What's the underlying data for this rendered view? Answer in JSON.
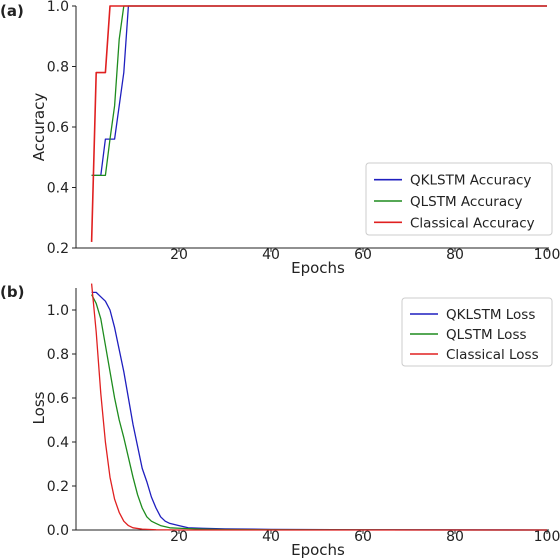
{
  "panels": [
    {
      "panel_label": "(a)"
    },
    {
      "panel_label": "(b)"
    }
  ],
  "chart_data": [
    {
      "type": "line",
      "xlabel": "Epochs",
      "ylabel": "Accuracy",
      "xlim": [
        0,
        100
      ],
      "ylim": [
        0.2,
        1.0
      ],
      "xticks": [
        20,
        40,
        60,
        80,
        100
      ],
      "yticks": [
        0.2,
        0.4,
        0.6,
        0.8,
        1.0
      ],
      "grid": false,
      "legend_position": "lower-right",
      "series": [
        {
          "name": "QKLSTM Accuracy",
          "color": "#1f1fbf",
          "x": [
            1,
            2,
            3,
            4,
            5,
            6,
            7,
            8,
            9,
            10,
            100
          ],
          "y": [
            0.44,
            0.44,
            0.44,
            0.56,
            0.56,
            0.56,
            0.67,
            0.78,
            1.0,
            1.0,
            1.0
          ]
        },
        {
          "name": "QLSTM Accuracy",
          "color": "#1e8c1e",
          "x": [
            1,
            2,
            3,
            4,
            5,
            6,
            7,
            8,
            9,
            100
          ],
          "y": [
            0.44,
            0.44,
            0.44,
            0.44,
            0.56,
            0.67,
            0.89,
            1.0,
            1.0,
            1.0
          ]
        },
        {
          "name": "Classical Accuracy",
          "color": "#e02020",
          "x": [
            1,
            2,
            3,
            4,
            5,
            6,
            100
          ],
          "y": [
            0.22,
            0.78,
            0.78,
            0.78,
            1.0,
            1.0,
            1.0
          ]
        }
      ]
    },
    {
      "type": "line",
      "xlabel": "Epochs",
      "ylabel": "Loss",
      "xlim": [
        0,
        100
      ],
      "ylim": [
        0.0,
        1.1
      ],
      "xticks": [
        20,
        40,
        60,
        80,
        100
      ],
      "yticks": [
        0.0,
        0.2,
        0.4,
        0.6,
        0.8,
        1.0
      ],
      "grid": false,
      "legend_position": "upper-right",
      "series": [
        {
          "name": "QKLSTM Loss",
          "color": "#1f1fbf",
          "x": [
            1,
            2,
            3,
            4,
            5,
            6,
            7,
            8,
            9,
            10,
            11,
            12,
            13,
            14,
            15,
            16,
            17,
            18,
            20,
            22,
            25,
            30,
            40,
            60,
            100
          ],
          "y": [
            1.08,
            1.08,
            1.06,
            1.04,
            1.0,
            0.92,
            0.82,
            0.72,
            0.6,
            0.48,
            0.38,
            0.28,
            0.22,
            0.15,
            0.1,
            0.06,
            0.04,
            0.03,
            0.02,
            0.01,
            0.008,
            0.005,
            0.003,
            0.001,
            0.0
          ]
        },
        {
          "name": "QLSTM Loss",
          "color": "#1e8c1e",
          "x": [
            1,
            2,
            3,
            4,
            5,
            6,
            7,
            8,
            9,
            10,
            11,
            12,
            13,
            14,
            15,
            16,
            18,
            20,
            25,
            30,
            40,
            100
          ],
          "y": [
            1.07,
            1.03,
            0.96,
            0.84,
            0.72,
            0.6,
            0.5,
            0.42,
            0.33,
            0.24,
            0.16,
            0.1,
            0.06,
            0.04,
            0.03,
            0.02,
            0.01,
            0.008,
            0.004,
            0.002,
            0.001,
            0.0
          ]
        },
        {
          "name": "Classical Loss",
          "color": "#e02020",
          "x": [
            1,
            2,
            3,
            4,
            5,
            6,
            7,
            8,
            9,
            10,
            12,
            15,
            20,
            100
          ],
          "y": [
            1.12,
            0.9,
            0.62,
            0.4,
            0.24,
            0.14,
            0.08,
            0.04,
            0.02,
            0.01,
            0.004,
            0.001,
            0.0,
            0.0
          ]
        }
      ]
    }
  ]
}
